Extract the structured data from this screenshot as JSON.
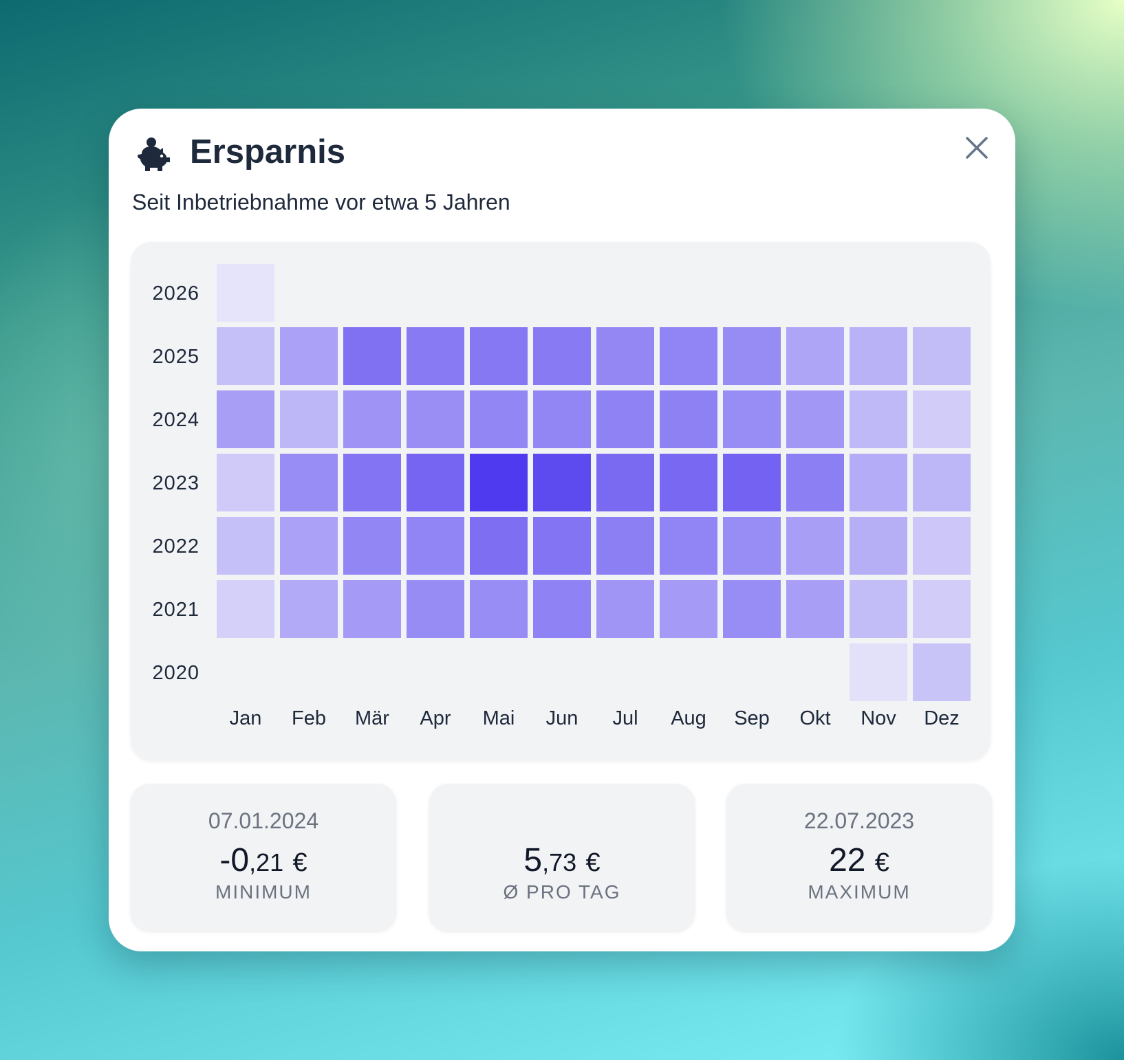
{
  "header": {
    "title": "Ersparnis",
    "icon": "piggy-bank-icon",
    "close_icon": "close-icon",
    "subtitle": "Seit Inbetriebnahme vor etwa 5 Jahren"
  },
  "colors": {
    "accent": "#4f3aef",
    "cell_low": "#e2e0f8",
    "panel": "#f2f3f5",
    "text_dark": "#1e293b",
    "text_muted": "#6b7280"
  },
  "chart_data": {
    "type": "heatmap",
    "title": "",
    "x_categories": [
      "Jan",
      "Feb",
      "Mär",
      "Apr",
      "Mai",
      "Jun",
      "Jul",
      "Aug",
      "Sep",
      "Okt",
      "Nov",
      "Dez"
    ],
    "y_categories": [
      "2026",
      "2025",
      "2024",
      "2023",
      "2022",
      "2021",
      "2020"
    ],
    "intensity_scale": "relative monthly savings, 0 = lowest, 1 = highest",
    "values": [
      [
        0.01,
        null,
        null,
        null,
        null,
        null,
        null,
        null,
        null,
        null,
        null,
        null
      ],
      [
        0.22,
        0.4,
        0.68,
        0.63,
        0.64,
        0.63,
        0.55,
        0.57,
        0.53,
        0.38,
        0.3,
        0.24
      ],
      [
        0.42,
        0.28,
        0.48,
        0.51,
        0.56,
        0.56,
        0.58,
        0.59,
        0.52,
        0.46,
        0.26,
        0.15
      ],
      [
        0.16,
        0.52,
        0.66,
        0.75,
        1.0,
        0.9,
        0.72,
        0.73,
        0.76,
        0.6,
        0.34,
        0.28
      ],
      [
        0.22,
        0.4,
        0.56,
        0.57,
        0.7,
        0.66,
        0.6,
        0.57,
        0.52,
        0.42,
        0.32,
        0.18
      ],
      [
        0.13,
        0.35,
        0.44,
        0.53,
        0.52,
        0.58,
        0.47,
        0.44,
        0.52,
        0.42,
        0.24,
        0.15
      ],
      [
        null,
        null,
        null,
        null,
        null,
        null,
        null,
        null,
        null,
        null,
        0.03,
        0.2
      ]
    ]
  },
  "stats": [
    {
      "date": "07.01.2024",
      "int": "-0",
      "dec": ",21",
      "cur": "€",
      "label": "MINIMUM"
    },
    {
      "date": "",
      "int": "5",
      "dec": ",73",
      "cur": "€",
      "label": "Ø PRO TAG"
    },
    {
      "date": "22.07.2023",
      "int": "22",
      "dec": "",
      "cur": "€",
      "label": "MAXIMUM"
    }
  ]
}
